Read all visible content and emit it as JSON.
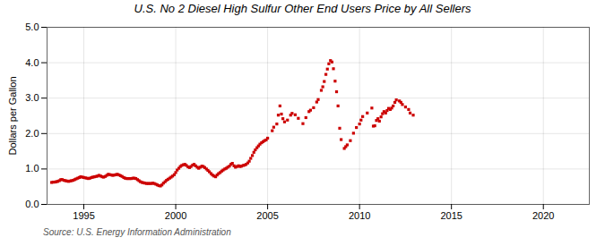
{
  "chart_data": {
    "type": "scatter",
    "title": "U.S. No 2 Diesel High Sulfur Other End Users Price by All Sellers",
    "ylabel": "Dollars per Gallon",
    "source": "Source: U.S. Energy Information Administration",
    "color": "#cc0000",
    "marker": "square",
    "grid": true,
    "xlim": [
      1993.0,
      2022.5
    ],
    "ylim": [
      0.0,
      5.0
    ],
    "xticks": [
      1995,
      2000,
      2005,
      2010,
      2015,
      2020
    ],
    "yticks": [
      {
        "value": 0,
        "label": "0.0"
      },
      {
        "value": 1,
        "label": "1.0"
      },
      {
        "value": 2,
        "label": "2.0"
      },
      {
        "value": 3,
        "label": "3.0"
      },
      {
        "value": 4,
        "label": "4.0"
      },
      {
        "value": 5,
        "label": "5.0"
      }
    ],
    "x": [
      1993.25,
      1993.33,
      1993.42,
      1993.5,
      1993.58,
      1993.67,
      1993.75,
      1993.83,
      1993.92,
      1994.0,
      1994.08,
      1994.17,
      1994.25,
      1994.33,
      1994.42,
      1994.5,
      1994.58,
      1994.67,
      1994.75,
      1994.83,
      1994.92,
      1995.0,
      1995.08,
      1995.17,
      1995.25,
      1995.33,
      1995.42,
      1995.5,
      1995.58,
      1995.67,
      1995.75,
      1995.83,
      1995.92,
      1996.0,
      1996.08,
      1996.17,
      1996.25,
      1996.33,
      1996.42,
      1996.5,
      1996.58,
      1996.67,
      1996.75,
      1996.83,
      1996.92,
      1997.0,
      1997.08,
      1997.17,
      1997.25,
      1997.33,
      1997.42,
      1997.5,
      1997.58,
      1997.67,
      1997.75,
      1997.83,
      1997.92,
      1998.0,
      1998.08,
      1998.17,
      1998.25,
      1998.33,
      1998.42,
      1998.5,
      1998.58,
      1998.67,
      1998.75,
      1998.83,
      1998.92,
      1999.0,
      1999.08,
      1999.17,
      1999.25,
      1999.33,
      1999.42,
      1999.5,
      1999.58,
      1999.67,
      1999.75,
      1999.83,
      1999.92,
      2000.0,
      2000.08,
      2000.17,
      2000.25,
      2000.33,
      2000.42,
      2000.5,
      2000.58,
      2000.67,
      2000.75,
      2000.83,
      2000.92,
      2001.0,
      2001.08,
      2001.17,
      2001.25,
      2001.33,
      2001.42,
      2001.5,
      2001.58,
      2001.67,
      2001.75,
      2001.83,
      2001.92,
      2002.0,
      2002.08,
      2002.17,
      2002.25,
      2002.33,
      2002.42,
      2002.5,
      2002.58,
      2002.67,
      2002.75,
      2002.83,
      2002.92,
      2003.0,
      2003.08,
      2003.17,
      2003.25,
      2003.33,
      2003.42,
      2003.5,
      2003.58,
      2003.67,
      2003.75,
      2003.83,
      2003.92,
      2004.0,
      2004.08,
      2004.17,
      2004.25,
      2004.33,
      2004.42,
      2004.5,
      2004.58,
      2004.67,
      2004.75,
      2004.83,
      2004.92,
      2005.0,
      2005.25,
      2005.33,
      2005.5,
      2005.58,
      2005.67,
      2005.75,
      2005.83,
      2005.92,
      2006.08,
      2006.25,
      2006.33,
      2006.5,
      2006.67,
      2006.92,
      2007.08,
      2007.25,
      2007.33,
      2007.5,
      2007.67,
      2007.75,
      2007.92,
      2008.0,
      2008.08,
      2008.17,
      2008.25,
      2008.33,
      2008.42,
      2008.5,
      2008.58,
      2008.67,
      2008.75,
      2008.83,
      2008.92,
      2009.0,
      2009.17,
      2009.25,
      2009.33,
      2009.5,
      2009.67,
      2009.83,
      2010.0,
      2010.08,
      2010.17,
      2010.42,
      2010.67,
      2010.75,
      2010.83,
      2010.92,
      2011.0,
      2011.08,
      2011.17,
      2011.25,
      2011.33,
      2011.42,
      2011.5,
      2011.58,
      2011.67,
      2011.75,
      2011.83,
      2011.92,
      2012.0,
      2012.17,
      2012.25,
      2012.33,
      2012.5,
      2012.67,
      2012.75,
      2012.92
    ],
    "values": [
      0.62,
      0.63,
      0.63,
      0.64,
      0.65,
      0.67,
      0.7,
      0.7,
      0.68,
      0.67,
      0.66,
      0.65,
      0.66,
      0.67,
      0.68,
      0.7,
      0.72,
      0.74,
      0.76,
      0.78,
      0.77,
      0.76,
      0.75,
      0.74,
      0.73,
      0.74,
      0.76,
      0.77,
      0.78,
      0.79,
      0.8,
      0.82,
      0.8,
      0.78,
      0.77,
      0.79,
      0.82,
      0.85,
      0.84,
      0.83,
      0.82,
      0.83,
      0.84,
      0.85,
      0.83,
      0.81,
      0.79,
      0.76,
      0.74,
      0.73,
      0.73,
      0.73,
      0.73,
      0.74,
      0.74,
      0.73,
      0.7,
      0.67,
      0.64,
      0.62,
      0.61,
      0.6,
      0.59,
      0.59,
      0.59,
      0.59,
      0.6,
      0.59,
      0.57,
      0.55,
      0.53,
      0.52,
      0.55,
      0.6,
      0.64,
      0.68,
      0.71,
      0.74,
      0.77,
      0.8,
      0.84,
      0.9,
      0.97,
      1.02,
      1.07,
      1.1,
      1.12,
      1.13,
      1.1,
      1.06,
      1.04,
      1.07,
      1.11,
      1.13,
      1.09,
      1.05,
      1.02,
      1.05,
      1.08,
      1.07,
      1.04,
      1.0,
      0.96,
      0.92,
      0.87,
      0.83,
      0.8,
      0.78,
      0.83,
      0.87,
      0.9,
      0.94,
      0.97,
      1.0,
      1.02,
      1.05,
      1.08,
      1.13,
      1.16,
      1.09,
      1.05,
      1.07,
      1.09,
      1.07,
      1.08,
      1.1,
      1.11,
      1.13,
      1.17,
      1.22,
      1.3,
      1.38,
      1.47,
      1.54,
      1.6,
      1.65,
      1.7,
      1.74,
      1.77,
      1.8,
      1.82,
      1.87,
      2.08,
      2.18,
      2.27,
      2.52,
      2.78,
      2.55,
      2.42,
      2.33,
      2.38,
      2.52,
      2.57,
      2.53,
      2.43,
      2.28,
      2.45,
      2.62,
      2.66,
      2.73,
      2.89,
      2.96,
      3.22,
      3.32,
      3.47,
      3.67,
      3.82,
      3.97,
      4.06,
      4.02,
      3.83,
      3.48,
      3.18,
      2.78,
      2.15,
      1.83,
      1.58,
      1.63,
      1.68,
      1.8,
      2.01,
      2.17,
      2.27,
      2.38,
      2.48,
      2.58,
      2.72,
      2.21,
      2.22,
      2.37,
      2.42,
      2.35,
      2.47,
      2.56,
      2.62,
      2.58,
      2.65,
      2.71,
      2.68,
      2.72,
      2.78,
      2.88,
      2.95,
      2.92,
      2.88,
      2.82,
      2.75,
      2.68,
      2.58,
      2.52
    ]
  }
}
